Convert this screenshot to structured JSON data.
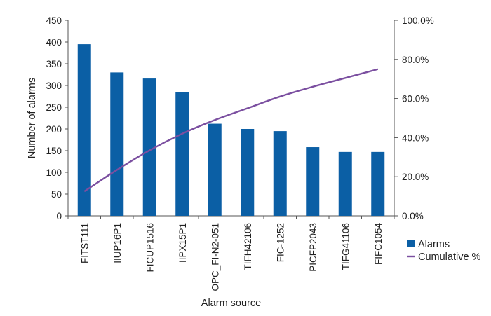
{
  "chart_data": {
    "type": "bar",
    "xlabel": "Alarm source",
    "ylabel": "Number of alarms",
    "ylim": [
      0,
      450
    ],
    "y2lim": [
      0,
      100
    ],
    "yticks": [
      "0",
      "50",
      "100",
      "150",
      "200",
      "250",
      "300",
      "350",
      "400",
      "450"
    ],
    "y2ticks": [
      "0.0%",
      "20.0%",
      "40.0%",
      "60.0%",
      "80.0%",
      "100.0%"
    ],
    "grid": false,
    "legend_position": "right",
    "categories": [
      "FITST111",
      "IIUP16P1",
      "FICUP1516",
      "IIPX15P1",
      "OPC_FI-N2-051",
      "TIFH42106",
      "FIC-1252",
      "PICFP2043",
      "TIFG41106",
      "FIFC1054"
    ],
    "series": [
      {
        "name": "Alarms",
        "kind": "bar",
        "axis": "left",
        "color": "#0b5fa5",
        "values": [
          395,
          330,
          316,
          285,
          212,
          200,
          195,
          158,
          147,
          147
        ]
      },
      {
        "name": "Cumulative %",
        "kind": "line",
        "axis": "right",
        "color": "#7b4fa0",
        "values": [
          12.5,
          23.5,
          33.5,
          42.0,
          49.0,
          55.0,
          61.0,
          66.0,
          70.5,
          75.0
        ]
      }
    ]
  }
}
